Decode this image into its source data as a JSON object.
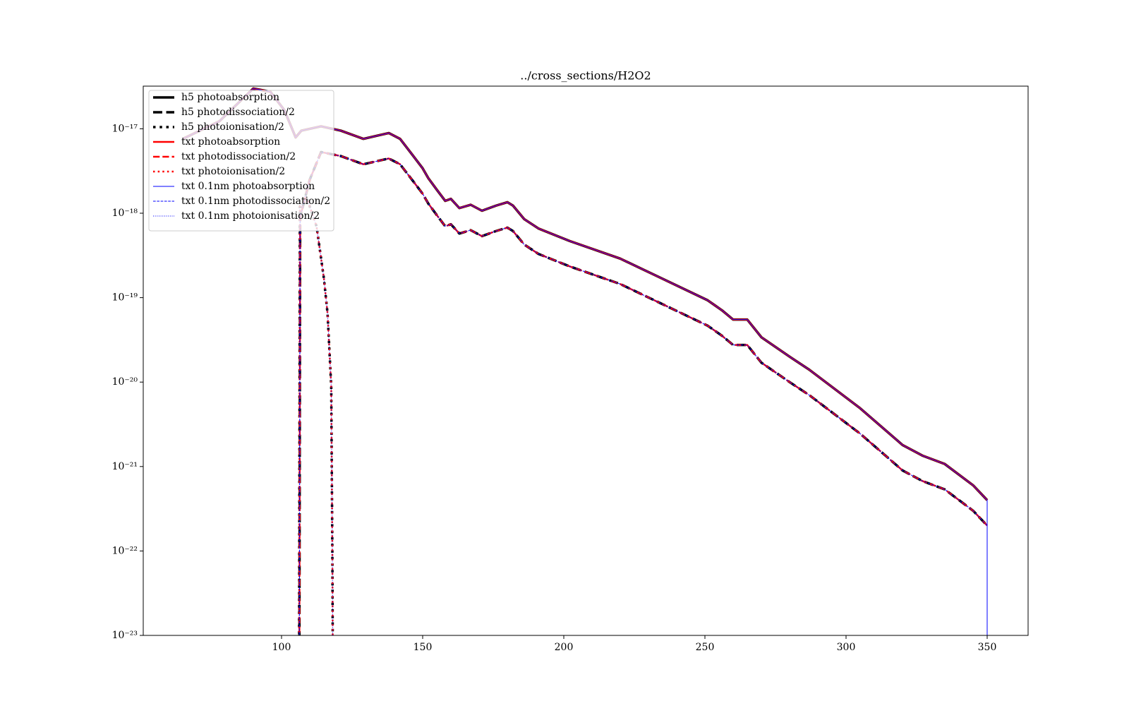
{
  "chart_data": {
    "type": "line",
    "title": "../cross_sections/H2O2",
    "xlim": [
      51,
      364.5
    ],
    "xticks": [
      100,
      150,
      200,
      250,
      300,
      350
    ],
    "ylim": [
      1e-23,
      3.2e-17
    ],
    "log_y": true,
    "yticks": [
      {
        "value": 1e-23,
        "label": "10⁻²³"
      },
      {
        "value": 1e-22,
        "label": "10⁻²²"
      },
      {
        "value": 1e-21,
        "label": "10⁻²¹"
      },
      {
        "value": 1e-20,
        "label": "10⁻²⁰"
      },
      {
        "value": 1e-19,
        "label": "10⁻¹⁹"
      },
      {
        "value": 1e-18,
        "label": "10⁻¹⁸"
      },
      {
        "value": 1e-17,
        "label": "10⁻¹⁷"
      }
    ],
    "legend": "upper left",
    "series": [
      {
        "name": "h5 photoabsorption",
        "color": "#000000",
        "linestyle": "solid",
        "linewidth": 3.5,
        "x": [
          65,
          78,
          90,
          96,
          101,
          105,
          107,
          114,
          121,
          129,
          134,
          138,
          142,
          146,
          150,
          152,
          155,
          158,
          160,
          163,
          167,
          171,
          176,
          180,
          182,
          186,
          191,
          202,
          220,
          233,
          251,
          256,
          260,
          265,
          270,
          280,
          287,
          305,
          320,
          327,
          335,
          345,
          350
        ],
        "values": [
          7.6e-18,
          1.23e-17,
          3e-17,
          2.75e-17,
          1.66e-17,
          7.9e-18,
          9.5e-18,
          1.07e-17,
          9.5e-18,
          7.6e-18,
          8.3e-18,
          8.9e-18,
          7.6e-18,
          5.1e-18,
          3.4e-18,
          2.6e-18,
          1.9e-18,
          1.4e-18,
          1.48e-18,
          1.15e-18,
          1.26e-18,
          1.07e-18,
          1.23e-18,
          1.35e-18,
          1.23e-18,
          8.5e-19,
          6.6e-19,
          4.7e-19,
          2.9e-19,
          1.8e-19,
          9.3e-20,
          7.1e-20,
          5.5e-20,
          5.5e-20,
          3.4e-20,
          2e-20,
          1.4e-20,
          4.9e-21,
          1.8e-21,
          1.35e-21,
          1.07e-21,
          6e-22,
          4e-22
        ]
      },
      {
        "name": "h5 photodissociation/2",
        "color": "#000000",
        "linestyle": "dashed",
        "linewidth": 3.5,
        "x": [
          106.3,
          106.6,
          110,
          114,
          121,
          129,
          134,
          138,
          142,
          146,
          150,
          152,
          155,
          158,
          160,
          163,
          167,
          171,
          176,
          180,
          182,
          186,
          191,
          202,
          220,
          233,
          251,
          256,
          260,
          265,
          270,
          280,
          287,
          305,
          320,
          327,
          335,
          345,
          350
        ],
        "values": [
          3e-24,
          9e-19,
          2.5e-18,
          5.3e-18,
          4.75e-18,
          3.8e-18,
          4.15e-18,
          4.45e-18,
          3.8e-18,
          2.55e-18,
          1.7e-18,
          1.3e-18,
          9.5e-19,
          7e-19,
          7.4e-19,
          5.75e-19,
          6.3e-19,
          5.35e-19,
          6.15e-19,
          6.75e-19,
          6.15e-19,
          4.25e-19,
          3.3e-19,
          2.35e-19,
          1.45e-19,
          9e-20,
          4.65e-20,
          3.55e-20,
          2.75e-20,
          2.75e-20,
          1.7e-20,
          1e-20,
          7e-21,
          2.45e-21,
          9e-22,
          6.75e-22,
          5.35e-22,
          3e-22,
          2e-22
        ]
      },
      {
        "name": "h5 photoionisation/2",
        "color": "#000000",
        "linestyle": "dotted",
        "linewidth": 3.5,
        "x": [
          106.2,
          106.5,
          109,
          112.4,
          115,
          116.3,
          117.6,
          118,
          118.2
        ],
        "values": [
          3e-24,
          1.2e-18,
          1.5e-18,
          7e-19,
          1.7e-19,
          6.5e-20,
          9e-21,
          1e-22,
          3e-24
        ]
      },
      {
        "name": "txt photoabsorption",
        "color": "#ff0000",
        "linestyle": "solid",
        "linewidth": 2.5,
        "x": [
          65,
          78,
          90,
          96,
          101,
          105,
          107,
          114,
          121,
          129,
          134,
          138,
          142,
          146,
          150,
          152,
          155,
          158,
          160,
          163,
          167,
          171,
          176,
          180,
          182,
          186,
          191,
          202,
          220,
          233,
          251,
          256,
          260,
          265,
          270,
          280,
          287,
          305,
          320,
          327,
          335,
          345,
          350
        ],
        "values": [
          7.6e-18,
          1.23e-17,
          3e-17,
          2.75e-17,
          1.66e-17,
          7.9e-18,
          9.5e-18,
          1.07e-17,
          9.5e-18,
          7.6e-18,
          8.3e-18,
          8.9e-18,
          7.6e-18,
          5.1e-18,
          3.4e-18,
          2.6e-18,
          1.9e-18,
          1.4e-18,
          1.48e-18,
          1.15e-18,
          1.26e-18,
          1.07e-18,
          1.23e-18,
          1.35e-18,
          1.23e-18,
          8.5e-19,
          6.6e-19,
          4.7e-19,
          2.9e-19,
          1.8e-19,
          9.3e-20,
          7.1e-20,
          5.5e-20,
          5.5e-20,
          3.4e-20,
          2e-20,
          1.4e-20,
          4.9e-21,
          1.8e-21,
          1.35e-21,
          1.07e-21,
          6e-22,
          4e-22
        ]
      },
      {
        "name": "txt photodissociation/2",
        "color": "#ff0000",
        "linestyle": "dashed",
        "linewidth": 2.5,
        "x": [
          106.3,
          106.6,
          110,
          114,
          121,
          129,
          134,
          138,
          142,
          146,
          150,
          152,
          155,
          158,
          160,
          163,
          167,
          171,
          176,
          180,
          182,
          186,
          191,
          202,
          220,
          233,
          251,
          256,
          260,
          265,
          270,
          280,
          287,
          305,
          320,
          327,
          335,
          345,
          350
        ],
        "values": [
          3e-24,
          9e-19,
          2.5e-18,
          5.3e-18,
          4.75e-18,
          3.8e-18,
          4.15e-18,
          4.45e-18,
          3.8e-18,
          2.55e-18,
          1.7e-18,
          1.3e-18,
          9.5e-19,
          7e-19,
          7.4e-19,
          5.75e-19,
          6.3e-19,
          5.35e-19,
          6.15e-19,
          6.75e-19,
          6.15e-19,
          4.25e-19,
          3.3e-19,
          2.35e-19,
          1.45e-19,
          9e-20,
          4.65e-20,
          3.55e-20,
          2.75e-20,
          2.75e-20,
          1.7e-20,
          1e-20,
          7e-21,
          2.45e-21,
          9e-22,
          6.75e-22,
          5.35e-22,
          3e-22,
          2e-22
        ]
      },
      {
        "name": "txt photoionisation/2",
        "color": "#ff0000",
        "linestyle": "dotted",
        "linewidth": 2.5,
        "x": [
          106.2,
          106.5,
          109,
          112.4,
          115,
          116.3,
          117.6,
          118,
          118.2
        ],
        "values": [
          3e-24,
          1.2e-18,
          1.5e-18,
          7e-19,
          1.7e-19,
          6.5e-20,
          9e-21,
          1e-22,
          3e-24
        ]
      },
      {
        "name": "txt 0.1nm photoabsorption",
        "color": "#0000ff",
        "linestyle": "solid",
        "linewidth": 1,
        "x": [
          65,
          78,
          90,
          96,
          101,
          105,
          107,
          114,
          121,
          129,
          134,
          138,
          142,
          146,
          150,
          152,
          155,
          158,
          160,
          163,
          167,
          171,
          176,
          180,
          182,
          186,
          191,
          202,
          220,
          233,
          251,
          256,
          260,
          265,
          270,
          280,
          287,
          305,
          320,
          327,
          335,
          345,
          350,
          350
        ],
        "values": [
          7.6e-18,
          1.23e-17,
          3e-17,
          2.75e-17,
          1.66e-17,
          7.9e-18,
          9.5e-18,
          1.07e-17,
          9.5e-18,
          7.6e-18,
          8.3e-18,
          8.9e-18,
          7.6e-18,
          5.1e-18,
          3.4e-18,
          2.6e-18,
          1.9e-18,
          1.4e-18,
          1.48e-18,
          1.15e-18,
          1.26e-18,
          1.07e-18,
          1.23e-18,
          1.35e-18,
          1.23e-18,
          8.5e-19,
          6.6e-19,
          4.7e-19,
          2.9e-19,
          1.8e-19,
          9.3e-20,
          7.1e-20,
          5.5e-20,
          5.5e-20,
          3.4e-20,
          2e-20,
          1.4e-20,
          4.9e-21,
          1.8e-21,
          1.35e-21,
          1.07e-21,
          6e-22,
          4e-22,
          3e-24
        ]
      },
      {
        "name": "txt 0.1nm photodissociation/2",
        "color": "#0000ff",
        "linestyle": "dashed",
        "linewidth": 1,
        "x": [
          106.3,
          106.6,
          110,
          114,
          121,
          129,
          134,
          138,
          142,
          146,
          150,
          152,
          155,
          158,
          160,
          163,
          167,
          171,
          176,
          180,
          182,
          186,
          191,
          202,
          220,
          233,
          251,
          256,
          260,
          265,
          270,
          280,
          287,
          305,
          320,
          327,
          335,
          345,
          350
        ],
        "values": [
          3e-24,
          9e-19,
          2.5e-18,
          5.3e-18,
          4.75e-18,
          3.8e-18,
          4.15e-18,
          4.45e-18,
          3.8e-18,
          2.55e-18,
          1.7e-18,
          1.3e-18,
          9.5e-19,
          7e-19,
          7.4e-19,
          5.75e-19,
          6.3e-19,
          5.35e-19,
          6.15e-19,
          6.75e-19,
          6.15e-19,
          4.25e-19,
          3.3e-19,
          2.35e-19,
          1.45e-19,
          9e-20,
          4.65e-20,
          3.55e-20,
          2.75e-20,
          2.75e-20,
          1.7e-20,
          1e-20,
          7e-21,
          2.45e-21,
          9e-22,
          6.75e-22,
          5.35e-22,
          3e-22,
          2e-22
        ]
      },
      {
        "name": "txt 0.1nm photoionisation/2",
        "color": "#0000ff",
        "linestyle": "dotted",
        "linewidth": 1,
        "x": [
          106.2,
          106.5,
          109,
          112.4,
          115,
          116.3,
          117.6,
          118,
          118.2
        ],
        "values": [
          3e-24,
          1.2e-18,
          1.5e-18,
          7e-19,
          1.7e-19,
          6.5e-20,
          9e-21,
          1e-22,
          3e-24
        ]
      }
    ]
  }
}
